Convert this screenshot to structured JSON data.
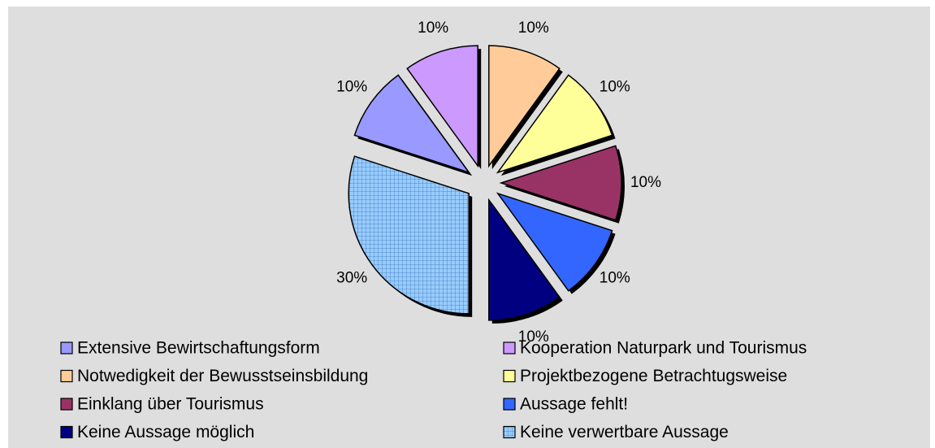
{
  "chart_data": {
    "type": "pie",
    "categories": [
      "Extensive Bewirtschaftungsform",
      "Kooperation Naturpark und Tourismus",
      "Notwedigkeit der Bewusstseinsbildung",
      "Projektbezogene Betrachtugsweise",
      "Einklang über Tourismus",
      "Aussage fehlt!",
      "Keine Aussage möglich",
      "Keine verwertbare Aussage"
    ],
    "values": [
      10,
      10,
      10,
      10,
      10,
      10,
      10,
      30
    ],
    "value_labels": [
      "10%",
      "10%",
      "10%",
      "10%",
      "10%",
      "10%",
      "10%",
      "30%"
    ],
    "colors": [
      "#9999ff",
      "#cc99ff",
      "#ffcc99",
      "#ffff99",
      "#993366",
      "#3366ff",
      "#000080",
      "#99ccff"
    ],
    "patterns": [
      null,
      null,
      null,
      null,
      null,
      null,
      null,
      "grid"
    ],
    "legend": "bottom"
  }
}
